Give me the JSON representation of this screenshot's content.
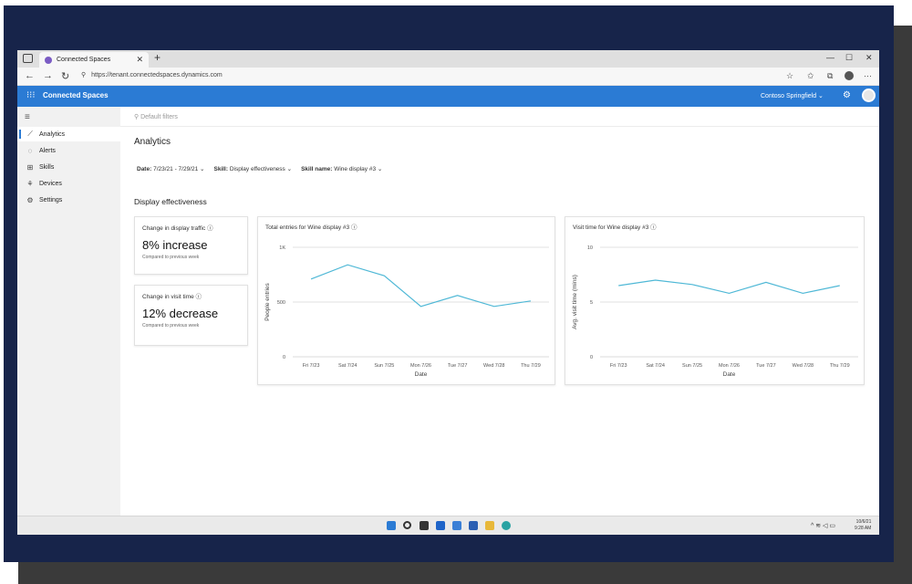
{
  "browser": {
    "tab_title": "Connected Spaces",
    "url": "https://tenant.connectedspaces.dynamics.com"
  },
  "app": {
    "name": "Connected Spaces",
    "tenant": "Contoso Springfield"
  },
  "sidebar": {
    "items": [
      {
        "label": "Analytics",
        "icon": "chart-line-icon",
        "active": true
      },
      {
        "label": "Alerts",
        "icon": "alert-icon"
      },
      {
        "label": "Skills",
        "icon": "grid-icon"
      },
      {
        "label": "Devices",
        "icon": "devices-icon"
      },
      {
        "label": "Settings",
        "icon": "gear-icon"
      }
    ]
  },
  "main": {
    "default_filters": "Default filters",
    "title": "Analytics",
    "filters": {
      "date_label": "Date:",
      "date_value": "7/23/21 - 7/29/21",
      "skill_label": "Skill:",
      "skill_value": "Display effectiveness",
      "skill_name_label": "Skill name:",
      "skill_name_value": "Wine display #3"
    },
    "section_title": "Display effectiveness",
    "kpis": [
      {
        "title": "Change in display traffic",
        "value": "8% increase",
        "sub": "Compared to previous week"
      },
      {
        "title": "Change in visit time",
        "value": "12% decrease",
        "sub": "Compared to previous week"
      }
    ]
  },
  "chart_data": [
    {
      "type": "line",
      "title": "Total entries for Wine display #3",
      "xlabel": "Date",
      "ylabel": "People entries",
      "x": [
        "Fri 7/23",
        "Sat 7/24",
        "Sun 7/25",
        "Mon 7/26",
        "Tue 7/27",
        "Wed 7/28",
        "Thu 7/29"
      ],
      "values": [
        710,
        840,
        740,
        460,
        560,
        460,
        510
      ],
      "yticks": [
        "0",
        "500",
        "1K"
      ],
      "ylim": [
        0,
        1000
      ],
      "grid": true,
      "color": "#4fb8d6"
    },
    {
      "type": "line",
      "title": "Visit time for Wine display #3",
      "xlabel": "Date",
      "ylabel": "Avg. visit time (mins)",
      "x": [
        "Fri 7/23",
        "Sat 7/24",
        "Sun 7/25",
        "Mon 7/26",
        "Tue 7/27",
        "Wed 7/28",
        "Thu 7/29"
      ],
      "values": [
        6.5,
        7.0,
        6.6,
        5.8,
        6.8,
        5.8,
        6.5
      ],
      "yticks": [
        "0",
        "5",
        "10"
      ],
      "ylim": [
        0,
        10
      ],
      "grid": true,
      "color": "#4fb8d6"
    }
  ],
  "taskbar": {
    "time": "9:28 AM",
    "date": "10/6/21"
  }
}
